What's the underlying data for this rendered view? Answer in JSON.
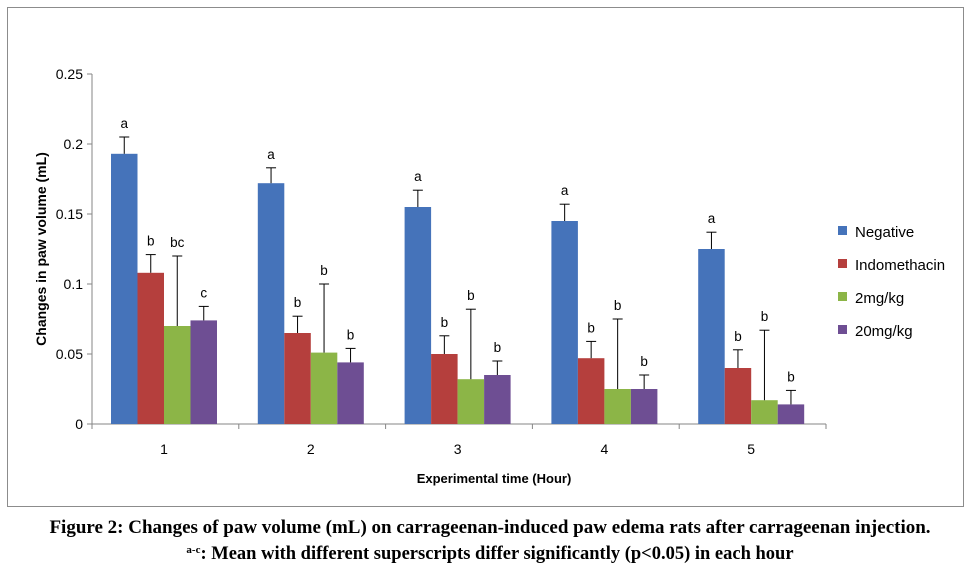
{
  "chart_data": {
    "type": "bar",
    "xlabel": "Experimental time (Hour)",
    "ylabel": "Changes in paw volume (mL)",
    "ylim": [
      0,
      0.25
    ],
    "yticks": [
      "0",
      "0.05",
      "0.1",
      "0.15",
      "0.2",
      "0.25"
    ],
    "categories": [
      "1",
      "2",
      "3",
      "4",
      "5"
    ],
    "legend_position": "right",
    "series": [
      {
        "name": "Negative",
        "color": "#4573BA",
        "values": [
          0.193,
          0.172,
          0.155,
          0.145,
          0.125
        ],
        "errors": [
          0.012,
          0.011,
          0.012,
          0.012,
          0.012
        ],
        "labels": [
          "a",
          "a",
          "a",
          "a",
          "a"
        ]
      },
      {
        "name": "Indomethacin",
        "color": "#B53F3D",
        "values": [
          0.108,
          0.065,
          0.05,
          0.047,
          0.04
        ],
        "errors": [
          0.013,
          0.012,
          0.013,
          0.012,
          0.013
        ],
        "labels": [
          "b",
          "b",
          "b",
          "b",
          "b"
        ]
      },
      {
        "name": "2mg/kg",
        "color": "#8CB547",
        "values": [
          0.07,
          0.051,
          0.032,
          0.025,
          0.017
        ],
        "errors": [
          0.05,
          0.049,
          0.05,
          0.05,
          0.05
        ],
        "labels": [
          "bc",
          "b",
          "b",
          "b",
          "b"
        ]
      },
      {
        "name": "20mg/kg",
        "color": "#6E4E93",
        "values": [
          0.074,
          0.044,
          0.035,
          0.025,
          0.014
        ],
        "errors": [
          0.01,
          0.01,
          0.01,
          0.01,
          0.01
        ],
        "labels": [
          "c",
          "b",
          "b",
          "b",
          "b"
        ]
      }
    ]
  },
  "caption": {
    "line1": "Figure 2: Changes of paw volume (mL) on carrageenan-induced paw edema rats after carrageenan injection.",
    "line2_superscript": "a-c",
    "line2_text": ": Mean with different superscripts differ significantly (p<0.05) in each hour"
  }
}
